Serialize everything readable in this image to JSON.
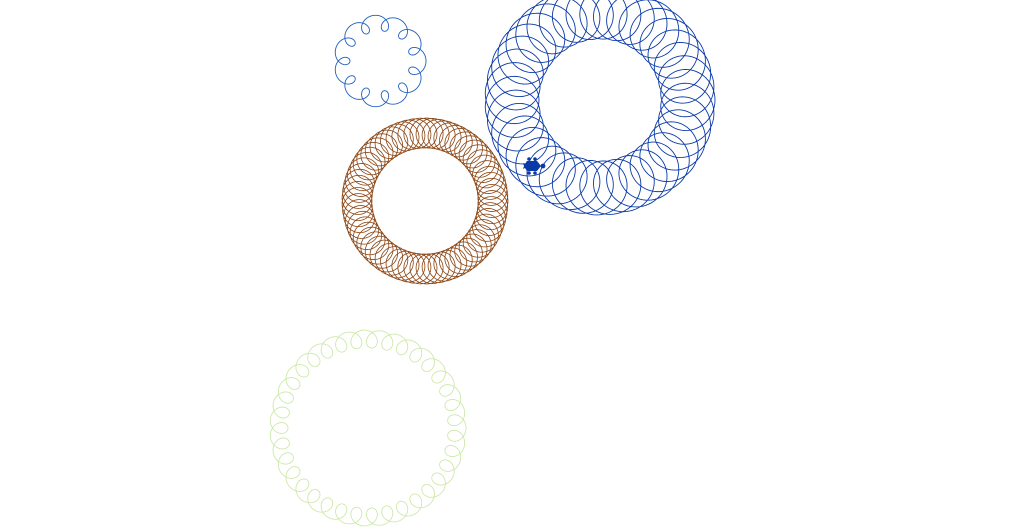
{
  "canvas": {
    "background": "#ffffff"
  },
  "spirographs": [
    {
      "name": "small-blue-spiral",
      "color": "#1f5fbf",
      "loops": 12
    },
    {
      "name": "large-dark-blue-spiral",
      "color": "#0a3aa8",
      "loops": 40
    },
    {
      "name": "brown-ring-spiral",
      "color": "#8b4513",
      "loops": 70
    },
    {
      "name": "light-green-spiral",
      "color": "#c8e6a0",
      "loops": 36
    }
  ],
  "turtle": {
    "icon": "turtle-icon",
    "color": "#0a3aa8",
    "heading": "east"
  }
}
